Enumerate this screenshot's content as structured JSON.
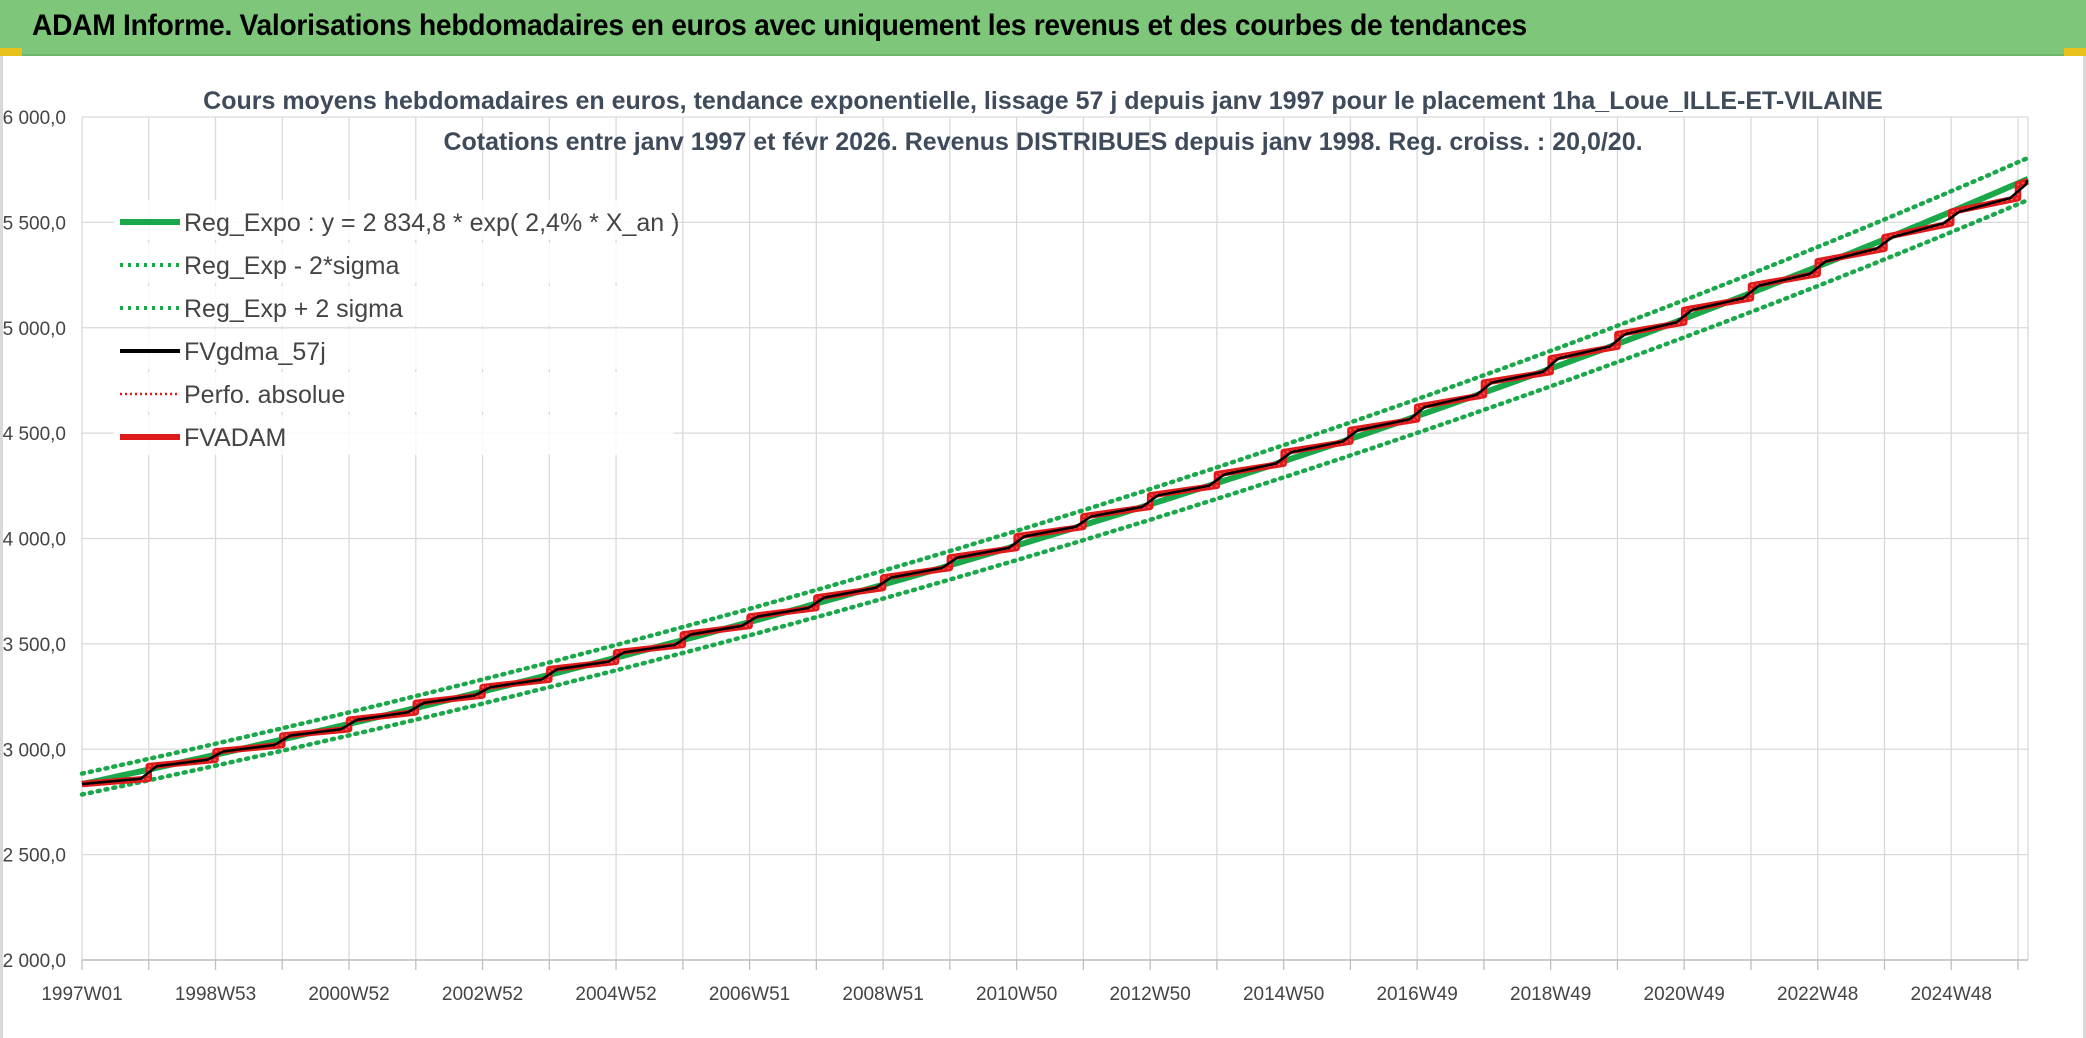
{
  "header": {
    "title": "ADAM Informe. Valorisations hebdomadaires en euros avec uniquement les revenus et des courbes de tendances"
  },
  "chart_data": {
    "type": "line",
    "title": "Cours moyens hebdomadaires en euros, tendance exponentielle, lissage 57 j depuis janv 1997 pour le placement 1ha_Loue_ILLE-ET-VILAINE",
    "subtitle": "Cotations entre janv 1997 et févr 2026. Revenus DISTRIBUES depuis janv 1998. Reg. croiss. : 20,0/20.",
    "xlabel": "",
    "ylabel": "",
    "ylim": [
      2000,
      6000
    ],
    "yticks": [
      2000,
      2500,
      3000,
      3500,
      4000,
      4500,
      5000,
      5500,
      6000
    ],
    "ytick_labels": [
      "2 000,0",
      "2 500,0",
      "3 000,0",
      "3 500,0",
      "4 000,0",
      "4 500,0",
      "5 000,0",
      "5 500,0",
      "6 000,0"
    ],
    "x_start_year": 1997,
    "x_end_year": 2026.15,
    "xtick_labels": [
      "1997W01",
      "1998W53",
      "2000W52",
      "2002W52",
      "2004W52",
      "2006W51",
      "2008W51",
      "2010W50",
      "2012W50",
      "2014W50",
      "2016W49",
      "2018W49",
      "2020W49",
      "2022W48",
      "2024W48"
    ],
    "grid": true,
    "legend_position": "top-left",
    "regression": {
      "a": 2834.8,
      "rate": 0.024,
      "sigma_factor": 0.0175
    },
    "steps": {
      "years": [
        1997,
        1998,
        1999,
        2000,
        2001,
        2002,
        2003,
        2004,
        2005,
        2006,
        2007,
        2008,
        2009,
        2010,
        2011,
        2012,
        2013,
        2014,
        2015,
        2016,
        2017,
        2018,
        2019,
        2020,
        2021,
        2022,
        2023,
        2024,
        2025,
        2026
      ],
      "start_values": [
        2835,
        2920,
        2990,
        3065,
        3140,
        3220,
        3295,
        3380,
        3460,
        3545,
        3630,
        3720,
        3815,
        3910,
        4010,
        4105,
        4205,
        4305,
        4410,
        4515,
        4625,
        4740,
        4855,
        4970,
        5085,
        5200,
        5315,
        5430,
        5550,
        5680
      ],
      "end_values": [
        2860,
        2950,
        3020,
        3095,
        3175,
        3255,
        3330,
        3415,
        3495,
        3585,
        3670,
        3765,
        3860,
        3955,
        4055,
        4150,
        4250,
        4355,
        4460,
        4565,
        4680,
        4790,
        4910,
        5025,
        5140,
        5255,
        5375,
        5495,
        5615,
        5695
      ]
    },
    "series": [
      {
        "name": "Reg_Expo : y = 2 834,8 * exp( 2,4% *  X_an )",
        "color": "#1aa84a",
        "style": "solid-thick"
      },
      {
        "name": "Reg_Exp - 2*sigma",
        "color": "#1aa84a",
        "style": "dotted"
      },
      {
        "name": "Reg_Exp + 2 sigma",
        "color": "#1aa84a",
        "style": "dotted"
      },
      {
        "name": "FVgdma_57j",
        "color": "#000000",
        "style": "solid"
      },
      {
        "name": "Perfo. absolue",
        "color": "#e01b1b",
        "style": "dotted-thin"
      },
      {
        "name": "FVADAM",
        "color": "#e01b1b",
        "style": "solid-thick"
      }
    ]
  }
}
